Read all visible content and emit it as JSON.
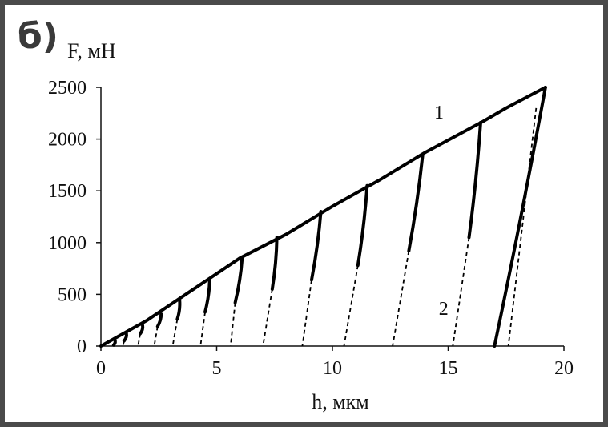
{
  "panel_label": "б)",
  "chart_data": {
    "type": "line",
    "title": "",
    "xlabel": "h, мкм",
    "ylabel": "F, мН",
    "xlim": [
      0,
      20
    ],
    "ylim": [
      0,
      2500
    ],
    "x_ticks": [
      "0",
      "5",
      "10",
      "15",
      "20"
    ],
    "y_ticks": [
      "0",
      "500",
      "1000",
      "1500",
      "2000",
      "2500"
    ],
    "grid": false,
    "series": [
      {
        "name": "1",
        "style": "solid",
        "loading_curve": [
          [
            0,
            0
          ],
          [
            2,
            250
          ],
          [
            4,
            550
          ],
          [
            6,
            850
          ],
          [
            8,
            1080
          ],
          [
            10,
            1350
          ],
          [
            12,
            1600
          ],
          [
            14,
            1870
          ],
          [
            16.5,
            2170
          ],
          [
            17.5,
            2300
          ],
          [
            19.2,
            2500
          ]
        ],
        "unloading_segments": [
          {
            "from": [
              0.6,
              60
            ],
            "to": [
              0.55,
              10
            ]
          },
          {
            "from": [
              1.1,
              120
            ],
            "to": [
              1.0,
              50
            ]
          },
          {
            "from": [
              1.8,
              200
            ],
            "to": [
              1.7,
              120
            ]
          },
          {
            "from": [
              2.6,
              310
            ],
            "to": [
              2.45,
              190
            ]
          },
          {
            "from": [
              3.4,
              440
            ],
            "to": [
              3.3,
              260
            ]
          },
          {
            "from": [
              4.7,
              640
            ],
            "to": [
              4.5,
              330
            ]
          },
          {
            "from": [
              6.1,
              850
            ],
            "to": [
              5.8,
              420
            ]
          },
          {
            "from": [
              7.6,
              1050
            ],
            "to": [
              7.4,
              550
            ]
          },
          {
            "from": [
              9.5,
              1300
            ],
            "to": [
              9.1,
              640
            ]
          },
          {
            "from": [
              11.5,
              1550
            ],
            "to": [
              11.1,
              780
            ]
          },
          {
            "from": [
              13.9,
              1850
            ],
            "to": [
              13.3,
              920
            ]
          },
          {
            "from": [
              16.4,
              2160
            ],
            "to": [
              15.9,
              1050
            ]
          },
          {
            "from": [
              19.2,
              2500
            ],
            "to": [
              17.0,
              0
            ]
          }
        ]
      },
      {
        "name": "2",
        "style": "dashed",
        "segments": [
          {
            "from": [
              0.55,
              10
            ],
            "to": [
              0.5,
              0
            ]
          },
          {
            "from": [
              1.0,
              50
            ],
            "to": [
              0.95,
              0
            ]
          },
          {
            "from": [
              1.7,
              120
            ],
            "to": [
              1.6,
              0
            ]
          },
          {
            "from": [
              2.45,
              190
            ],
            "to": [
              2.3,
              0
            ]
          },
          {
            "from": [
              3.3,
              260
            ],
            "to": [
              3.1,
              0
            ]
          },
          {
            "from": [
              4.5,
              330
            ],
            "to": [
              4.3,
              0
            ]
          },
          {
            "from": [
              5.8,
              420
            ],
            "to": [
              5.6,
              0
            ]
          },
          {
            "from": [
              7.4,
              550
            ],
            "to": [
              7.0,
              0
            ]
          },
          {
            "from": [
              9.1,
              640
            ],
            "to": [
              8.7,
              0
            ]
          },
          {
            "from": [
              11.1,
              780
            ],
            "to": [
              10.5,
              0
            ]
          },
          {
            "from": [
              13.3,
              920
            ],
            "to": [
              12.6,
              0
            ]
          },
          {
            "from": [
              15.9,
              1050
            ],
            "to": [
              15.2,
              0
            ]
          },
          {
            "from": [
              18.8,
              2300
            ],
            "to": [
              17.6,
              0
            ]
          }
        ]
      }
    ],
    "annotations": [
      {
        "text": "1",
        "x": 14.6,
        "y": 2200
      },
      {
        "text": "2",
        "x": 14.8,
        "y": 300
      }
    ]
  }
}
